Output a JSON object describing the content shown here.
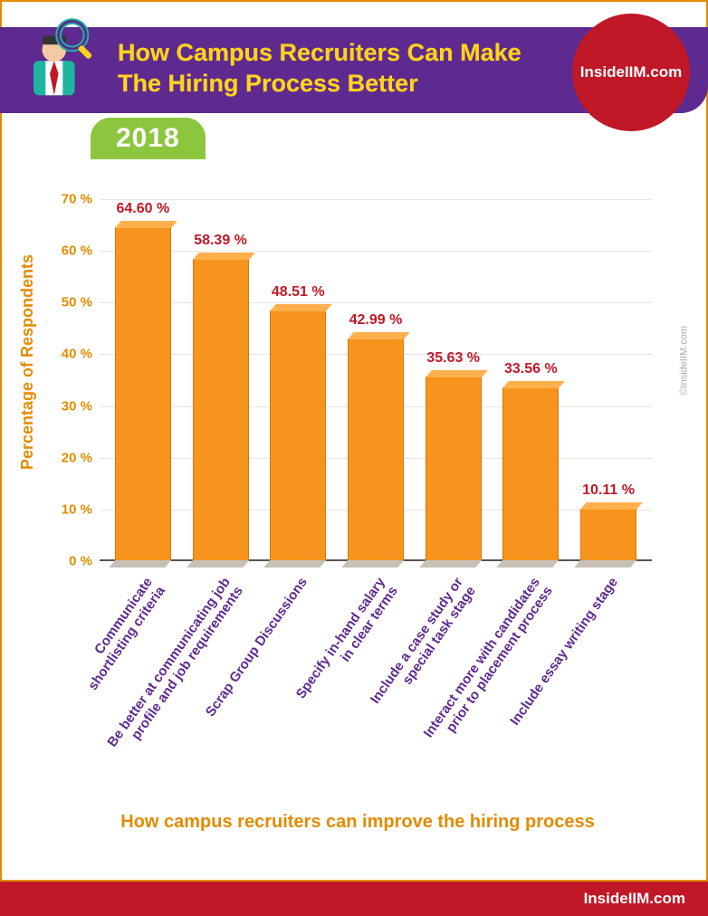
{
  "header": {
    "title": "How Campus Recruiters Can Make The Hiring Process Better",
    "logo_text": "InsideIIM.com",
    "year": "2018",
    "title_color": "#ffd31b",
    "bar_color": "#5e2a8f",
    "pill_color": "#8cc63f",
    "logo_bg": "#c01826"
  },
  "chart": {
    "type": "bar",
    "ylabel": "Percentage of Respondents",
    "xlabel": "How campus recruiters can improve the hiring process",
    "ylim_max": 70,
    "ytick_step": 10,
    "ytick_suffix": " %",
    "bar_color": "#f7941e",
    "value_color": "#c01826",
    "label_color": "#5e2a8f",
    "axis_color": "#e38b00",
    "grid_color": "#e8e5e0",
    "background_color": "#ffffff",
    "value_fontsize": 16,
    "label_fontsize": 15,
    "axis_fontsize": 18,
    "categories": [
      {
        "label_l1": "Communicate",
        "label_l2": "shortlisting criteria",
        "value": 64.6,
        "value_label": "64.60 %"
      },
      {
        "label_l1": "Be better at communicating job",
        "label_l2": "profile and job requirements",
        "value": 58.39,
        "value_label": "58.39 %"
      },
      {
        "label_l1": "Scrap Group Discussions",
        "label_l2": "",
        "value": 48.51,
        "value_label": "48.51 %"
      },
      {
        "label_l1": "Specify in-hand salary",
        "label_l2": "in clear terms",
        "value": 42.99,
        "value_label": "42.99 %"
      },
      {
        "label_l1": "Include a case study or",
        "label_l2": "special task stage",
        "value": 35.63,
        "value_label": "35.63 %"
      },
      {
        "label_l1": "Interact more with candidates",
        "label_l2": "prior to placement process",
        "value": 33.56,
        "value_label": "33.56 %"
      },
      {
        "label_l1": "Include essay writing stage",
        "label_l2": "",
        "value": 10.11,
        "value_label": "10.11 %"
      }
    ]
  },
  "watermark": "©InsideIIM.com",
  "footer": {
    "text": "InsideIIM.com",
    "bg": "#c01826"
  }
}
